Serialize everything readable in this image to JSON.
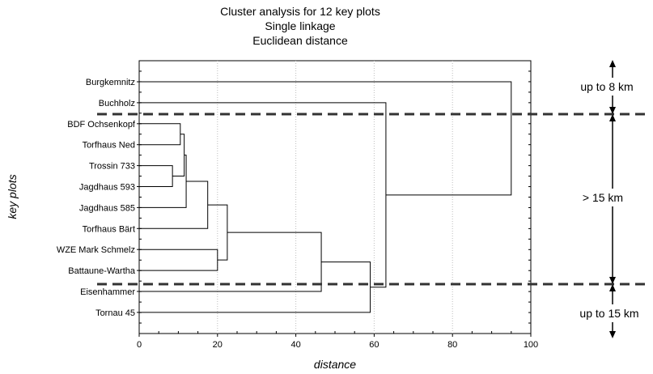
{
  "chart_data": {
    "type": "dendrogram",
    "title": [
      "Cluster analysis for 12 key plots",
      "Single linkage",
      "Euclidean distance"
    ],
    "xlabel": "distance",
    "ylabel": "key plots",
    "xlim": [
      0,
      100
    ],
    "xticks": [
      0,
      20,
      40,
      60,
      80,
      100
    ],
    "grid": "vertical dotted",
    "leaves": [
      "Burgkemnitz",
      "Buchholz",
      "BDF Ochsenkopf",
      "Torfhaus Ned",
      "Trossin 733",
      "Jagdhaus 593",
      "Jagdhaus 585",
      "Torfhaus Bärt",
      "WZE Mark Schmelz",
      "Battaune-Wartha",
      "Eisenhammer",
      "Tornau 45"
    ],
    "merges": [
      {
        "a": 4,
        "b": 5,
        "distance": 8.5
      },
      {
        "a": 2,
        "b": 3,
        "distance": 10.5
      },
      {
        "a": "m1",
        "b": "m0",
        "distance": 11.5
      },
      {
        "a": "m2",
        "b": 6,
        "distance": 12.0
      },
      {
        "a": "m3",
        "b": 7,
        "distance": 17.5
      },
      {
        "a": 8,
        "b": 9,
        "distance": 20.0
      },
      {
        "a": "m4",
        "b": "m5",
        "distance": 22.5
      },
      {
        "a": "m6",
        "b": 10,
        "distance": 46.5
      },
      {
        "a": "m7",
        "b": 11,
        "distance": 59.0
      },
      {
        "a": 1,
        "b": "m8",
        "distance": 63.0
      },
      {
        "a": 0,
        "b": "m9",
        "distance": 95.0
      }
    ]
  },
  "bands": [
    {
      "label": "up to 8 km"
    },
    {
      "label": "> 15 km"
    },
    {
      "label": "up to 15 km"
    }
  ]
}
